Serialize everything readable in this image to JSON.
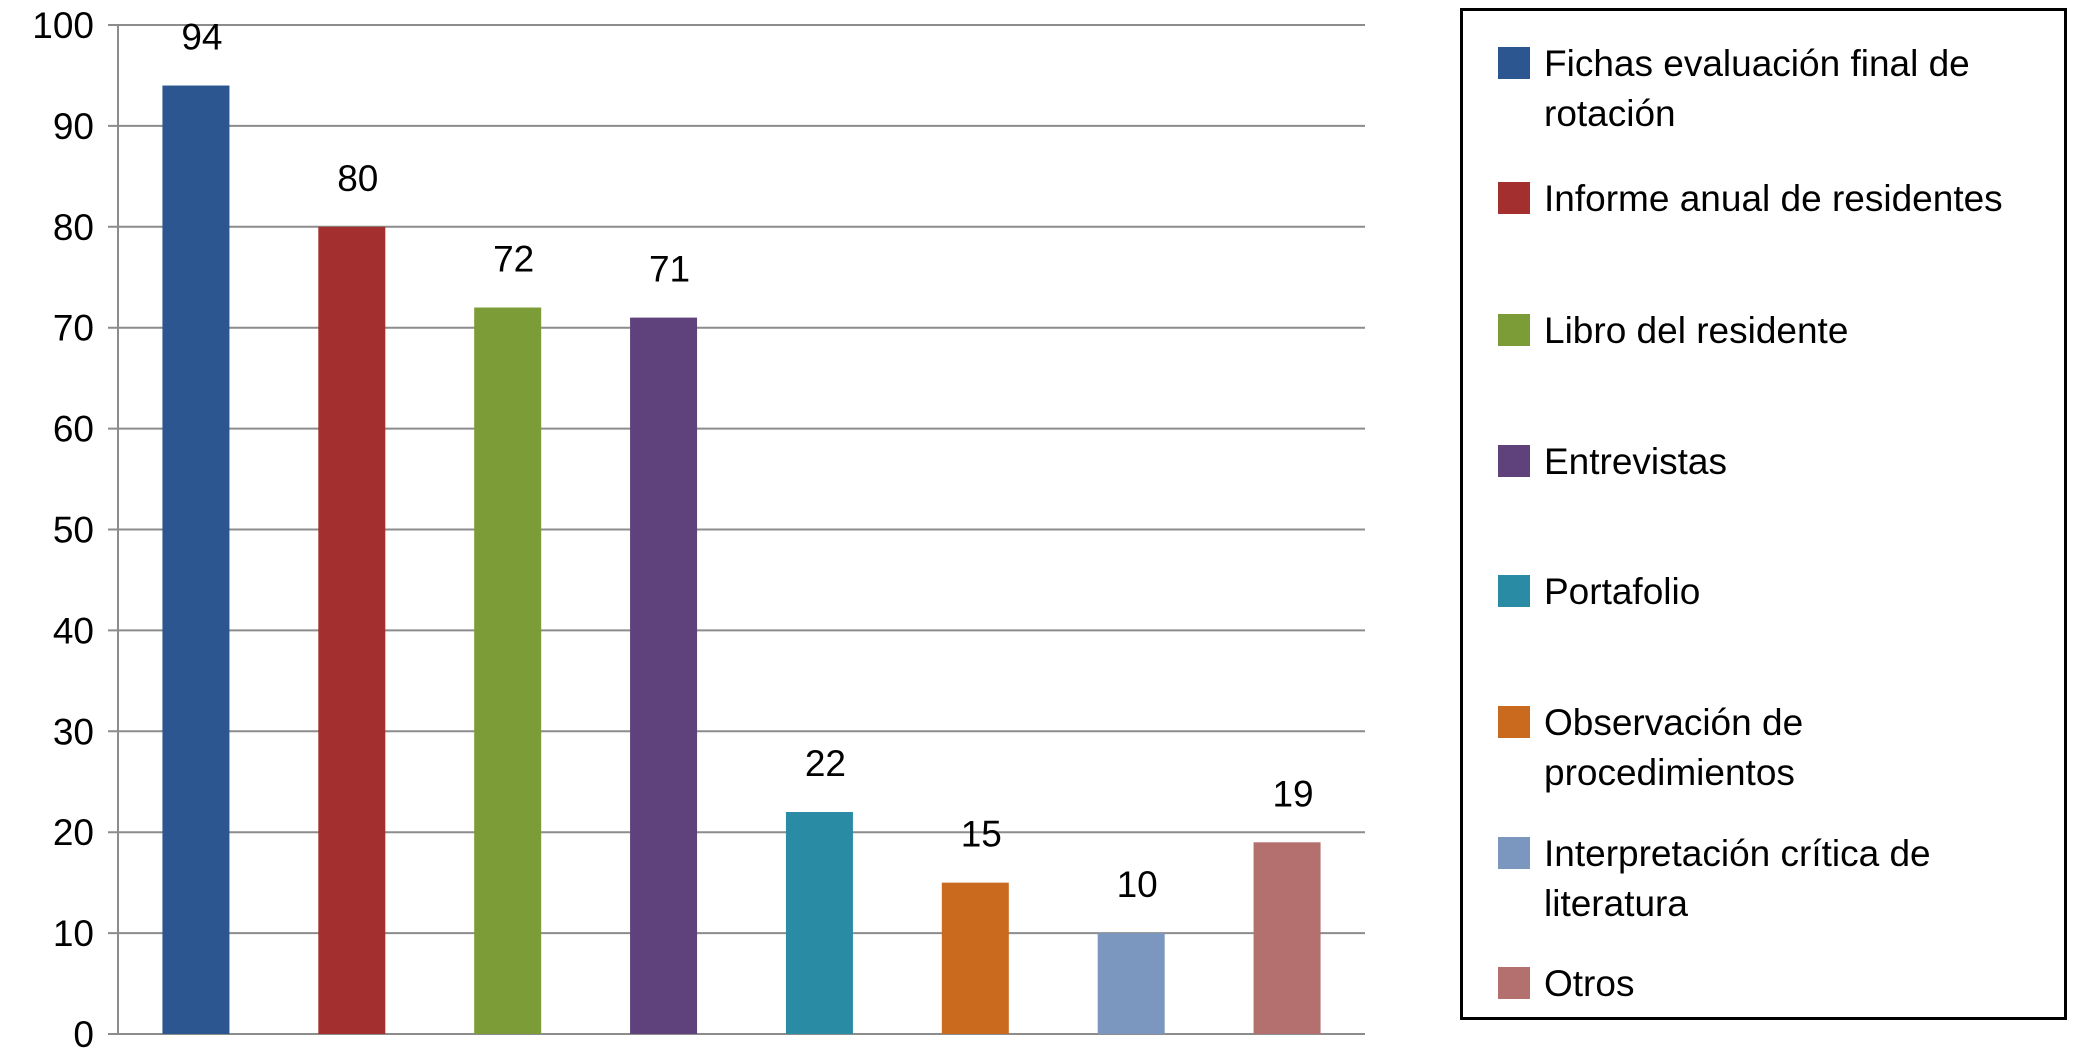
{
  "chart_data": {
    "type": "bar",
    "title": "",
    "xlabel": "",
    "ylabel": "",
    "ylim": [
      0,
      100
    ],
    "yticks": [
      0,
      10,
      20,
      30,
      40,
      50,
      60,
      70,
      80,
      90,
      100
    ],
    "grid": true,
    "legend_position": "right",
    "categories": [
      "Fichas evaluación final de rotación",
      "Informe anual de residentes",
      "Libro del residente",
      "Entrevistas",
      "Portafolio",
      "Observación de procedimientos",
      "Interpretación crítica de literatura",
      "Otros"
    ],
    "values": [
      94,
      80,
      72,
      71,
      22,
      15,
      10,
      19
    ],
    "colors": [
      "#2B5690",
      "#A32F2E",
      "#7B9C36",
      "#5F427C",
      "#2A8BA5",
      "#C96A1F",
      "#7B97C0",
      "#B3706F"
    ]
  },
  "legend": {
    "items": [
      {
        "label": "Fichas evaluación final de rotación",
        "color": "#2B5690"
      },
      {
        "label": "Informe anual de residentes",
        "color": "#A32F2E"
      },
      {
        "label": "Libro del residente",
        "color": "#7B9C36"
      },
      {
        "label": "Entrevistas",
        "color": "#5F427C"
      },
      {
        "label": "Portafolio",
        "color": "#2A8BA5"
      },
      {
        "label": "Observación de procedimientos",
        "color": "#C96A1F"
      },
      {
        "label": "Interpretación crítica de literatura",
        "color": "#7B97C0"
      },
      {
        "label": "Otros",
        "color": "#B3706F"
      }
    ]
  }
}
